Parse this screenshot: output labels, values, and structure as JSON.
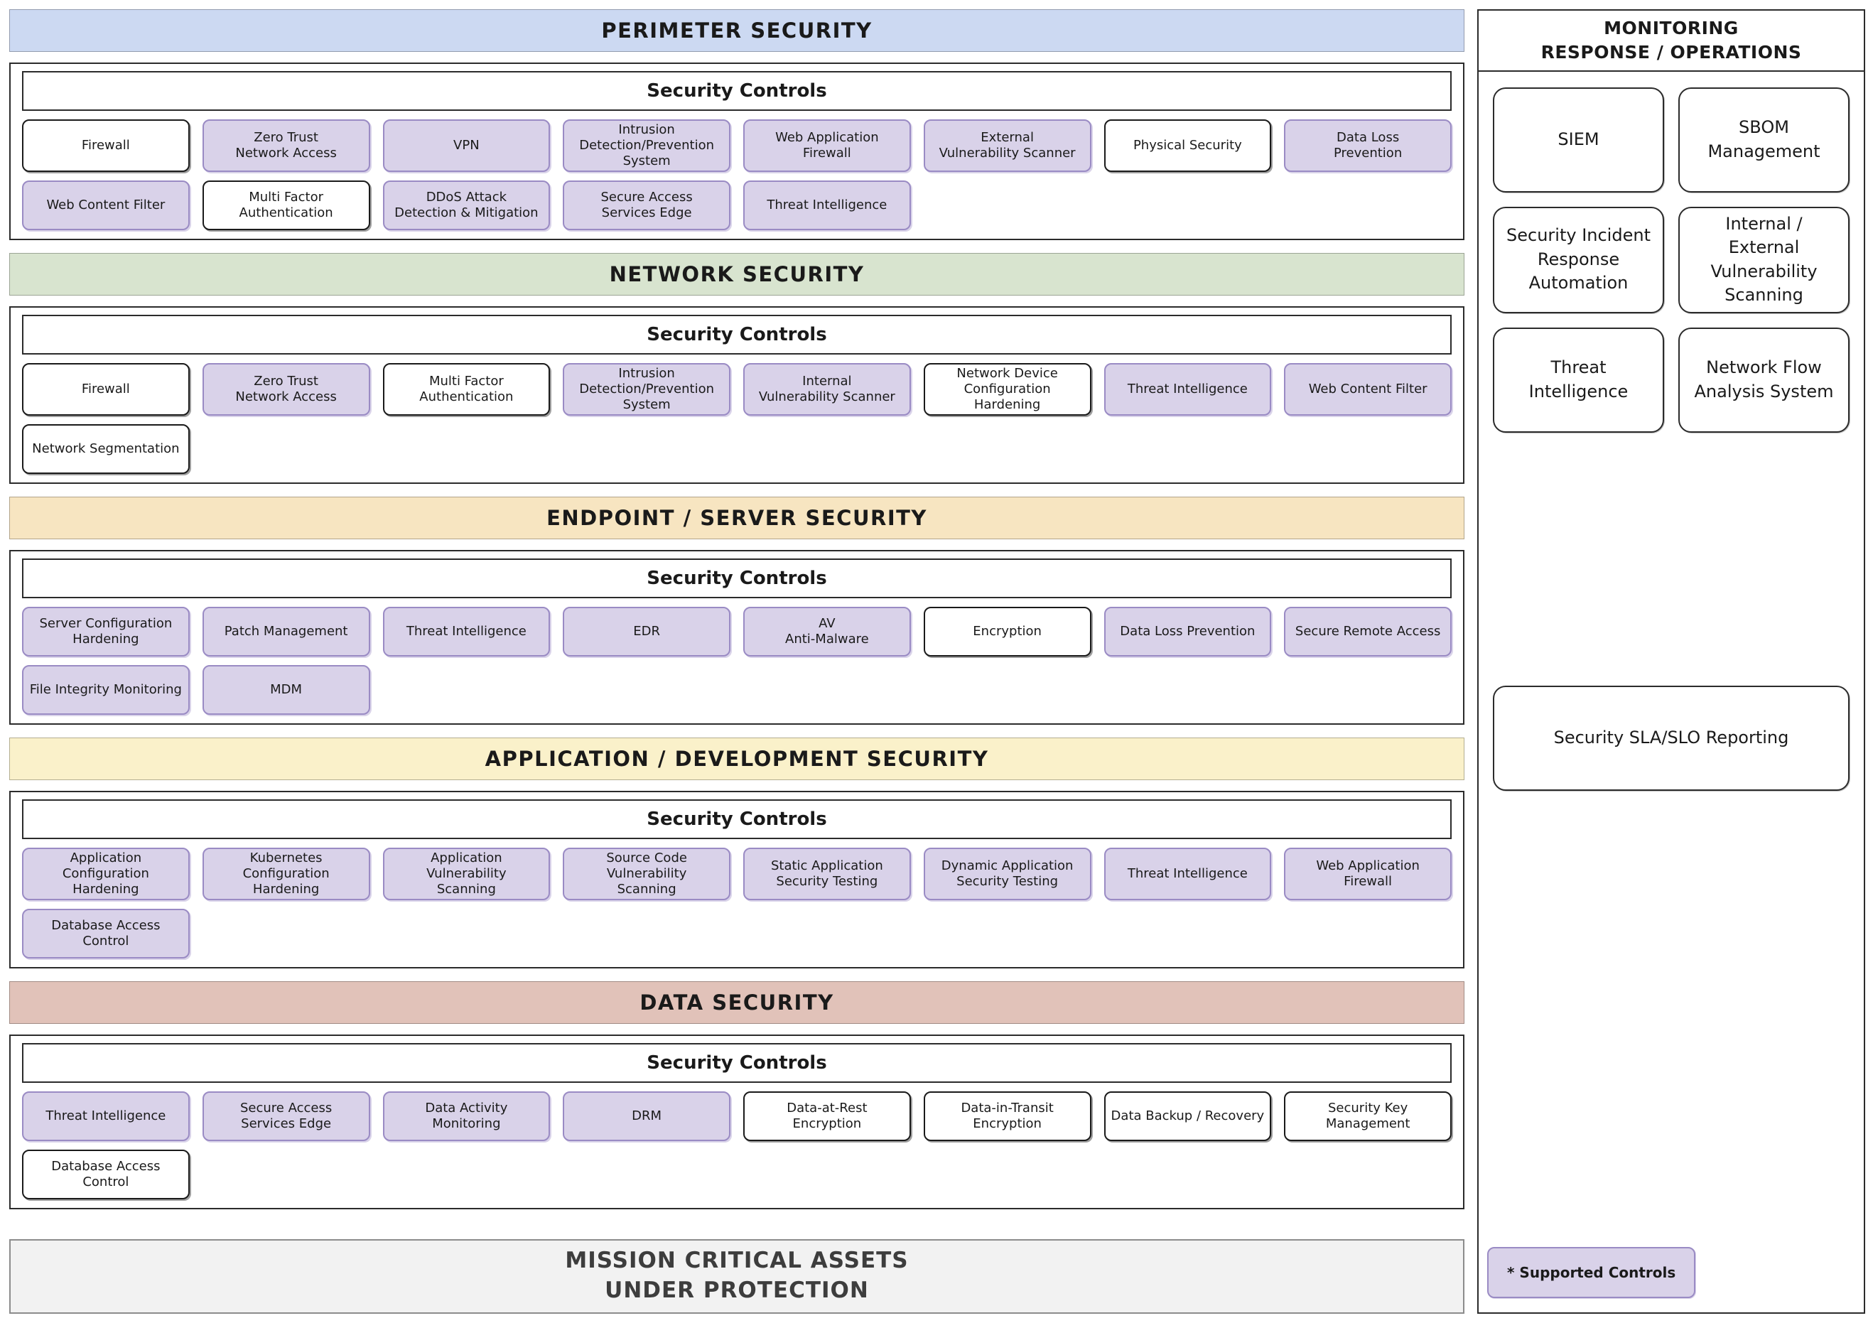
{
  "controls_heading": "Security Controls",
  "palette": {
    "supported_fill": "#d9d2e9",
    "supported_border": "#9a8bc4",
    "regular_border": "#1a1a1a",
    "mission_fill": "#f2f2f2"
  },
  "sections": [
    {
      "id": "perimeter",
      "title": "PERIMETER SECURITY",
      "band_color": "#ccd9f2",
      "controls": [
        {
          "label": "Firewall",
          "supported": false
        },
        {
          "label": "Zero Trust\nNetwork Access",
          "supported": true
        },
        {
          "label": "VPN",
          "supported": true
        },
        {
          "label": "Intrusion\nDetection/Prevention\nSystem",
          "supported": true
        },
        {
          "label": "Web Application Firewall",
          "supported": true
        },
        {
          "label": "External\nVulnerability Scanner",
          "supported": true
        },
        {
          "label": "Physical Security",
          "supported": false
        },
        {
          "label": "Data Loss\nPrevention",
          "supported": true
        },
        {
          "label": "Web Content Filter",
          "supported": true
        },
        {
          "label": "Multi Factor\nAuthentication",
          "supported": false
        },
        {
          "label": "DDoS Attack\nDetection & Mitigation",
          "supported": true
        },
        {
          "label": "Secure Access\nServices Edge",
          "supported": true
        },
        {
          "label": "Threat Intelligence",
          "supported": true
        }
      ]
    },
    {
      "id": "network",
      "title": "NETWORK SECURITY",
      "band_color": "#d8e4cf",
      "controls": [
        {
          "label": "Firewall",
          "supported": false
        },
        {
          "label": "Zero Trust\nNetwork Access",
          "supported": true
        },
        {
          "label": "Multi Factor\nAuthentication",
          "supported": false
        },
        {
          "label": "Intrusion\nDetection/Prevention\nSystem",
          "supported": true
        },
        {
          "label": "Internal\nVulnerability Scanner",
          "supported": true
        },
        {
          "label": "Network Device\nConfiguration Hardening",
          "supported": false
        },
        {
          "label": "Threat Intelligence",
          "supported": true
        },
        {
          "label": "Web Content Filter",
          "supported": true
        },
        {
          "label": "Network Segmentation",
          "supported": false
        }
      ]
    },
    {
      "id": "endpoint",
      "title": "ENDPOINT / SERVER SECURITY",
      "band_color": "#f7e5c1",
      "controls": [
        {
          "label": "Server Configuration\nHardening",
          "supported": true
        },
        {
          "label": "Patch Management",
          "supported": true
        },
        {
          "label": "Threat Intelligence",
          "supported": true
        },
        {
          "label": "EDR",
          "supported": true
        },
        {
          "label": "AV\nAnti-Malware",
          "supported": true
        },
        {
          "label": "Encryption",
          "supported": false
        },
        {
          "label": "Data Loss Prevention",
          "supported": true
        },
        {
          "label": "Secure Remote Access",
          "supported": true
        },
        {
          "label": "File Integrity Monitoring",
          "supported": true
        },
        {
          "label": "MDM",
          "supported": true
        }
      ]
    },
    {
      "id": "application",
      "title": "APPLICATION / DEVELOPMENT SECURITY",
      "band_color": "#faf1ca",
      "controls": [
        {
          "label": "Application Configuration\nHardening",
          "supported": true
        },
        {
          "label": "Kubernetes Configuration\nHardening",
          "supported": true
        },
        {
          "label": "Application Vulnerability\nScanning",
          "supported": true
        },
        {
          "label": "Source Code Vulnerability\nScanning",
          "supported": true
        },
        {
          "label": "Static Application\nSecurity Testing",
          "supported": true
        },
        {
          "label": "Dynamic Application\nSecurity Testing",
          "supported": true
        },
        {
          "label": "Threat Intelligence",
          "supported": true
        },
        {
          "label": "Web Application Firewall",
          "supported": true
        },
        {
          "label": "Database Access Control",
          "supported": true
        }
      ]
    },
    {
      "id": "data",
      "title": "DATA SECURITY",
      "band_color": "#e1c2b9",
      "controls": [
        {
          "label": "Threat Intelligence",
          "supported": true
        },
        {
          "label": "Secure Access\nServices Edge",
          "supported": true
        },
        {
          "label": "Data Activity Monitoring",
          "supported": true
        },
        {
          "label": "DRM",
          "supported": true
        },
        {
          "label": "Data-at-Rest\nEncryption",
          "supported": false
        },
        {
          "label": "Data-in-Transit\nEncryption",
          "supported": false
        },
        {
          "label": "Data Backup / Recovery",
          "supported": false
        },
        {
          "label": "Security Key Management",
          "supported": false
        },
        {
          "label": "Database Access Control",
          "supported": false
        }
      ]
    }
  ],
  "mission": {
    "line1": "MISSION CRITICAL ASSETS",
    "line2": "UNDER PROTECTION"
  },
  "sidebar": {
    "title": "MONITORING\nRESPONSE / OPERATIONS",
    "items": [
      "SIEM",
      "SBOM\nManagement",
      "Security Incident\nResponse Automation",
      "Internal / External\nVulnerability Scanning",
      "Threat Intelligence",
      "Network Flow\nAnalysis System"
    ],
    "sla_item": "Security SLA/SLO Reporting",
    "legend": "* Supported Controls"
  }
}
